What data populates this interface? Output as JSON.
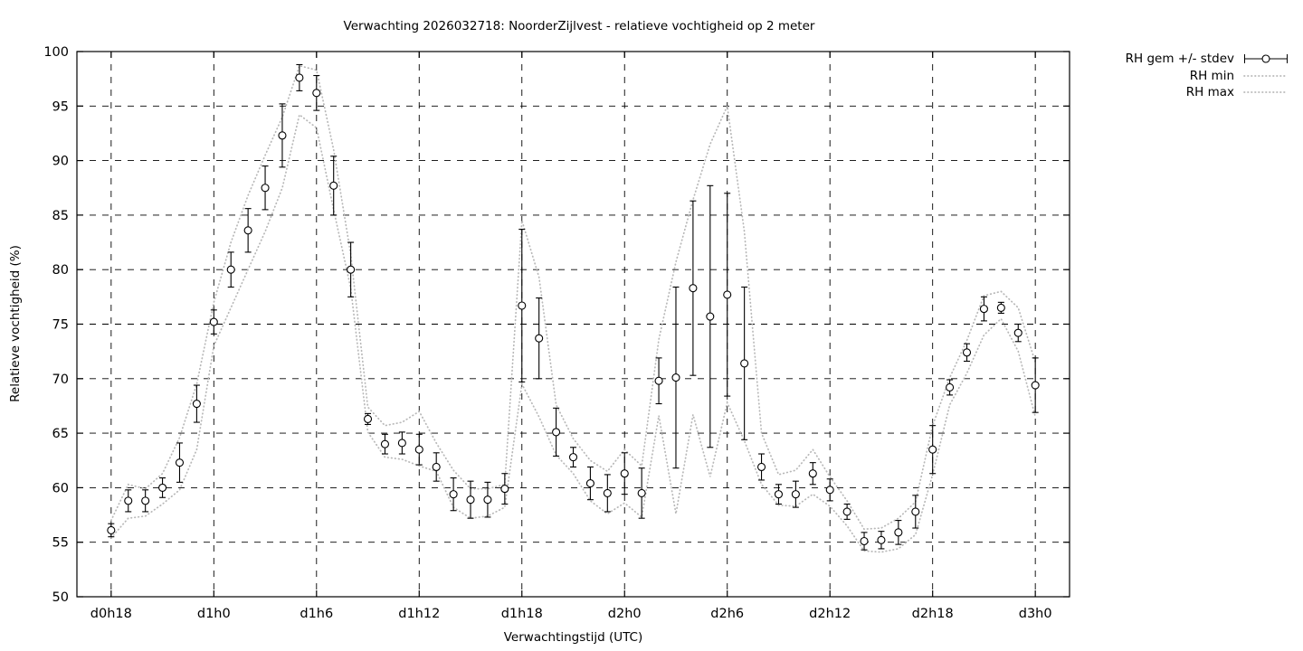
{
  "chart_data": {
    "type": "line",
    "title": "Verwachting 2026032718: NoorderZijlvest - relatieve vochtigheid op 2 meter",
    "xlabel": "Verwachtingstijd (UTC)",
    "ylabel": "Relatieve vochtigheid (%)",
    "grid": true,
    "legend_position": "outside-top-right",
    "ylim": [
      50,
      100
    ],
    "yticks": [
      50,
      55,
      60,
      65,
      70,
      75,
      80,
      85,
      90,
      95,
      100
    ],
    "xlim_hours": [
      16,
      74
    ],
    "xticks": [
      {
        "hour": 18,
        "label": "d0h18"
      },
      {
        "hour": 24,
        "label": "d1h0"
      },
      {
        "hour": 30,
        "label": "d1h6"
      },
      {
        "hour": 36,
        "label": "d1h12"
      },
      {
        "hour": 42,
        "label": "d1h18"
      },
      {
        "hour": 48,
        "label": "d2h0"
      },
      {
        "hour": 54,
        "label": "d2h6"
      },
      {
        "hour": 60,
        "label": "d2h12"
      },
      {
        "hour": 66,
        "label": "d2h18"
      },
      {
        "hour": 72,
        "label": "d3h0"
      }
    ],
    "x_hours": [
      18,
      19,
      20,
      21,
      22,
      23,
      24,
      25,
      26,
      27,
      28,
      29,
      30,
      31,
      32,
      33,
      34,
      35,
      36,
      37,
      38,
      39,
      40,
      41,
      42,
      43,
      44,
      45,
      46,
      47,
      48,
      49,
      50,
      51,
      52,
      53,
      54,
      55,
      56,
      57,
      58,
      59,
      60,
      61,
      62,
      63,
      64,
      65,
      66,
      67,
      68,
      69,
      70,
      71,
      72
    ],
    "series": [
      {
        "name": "RH gem +/- stdev",
        "style": "points-errorbars",
        "color": "#000000",
        "values": [
          56.1,
          58.8,
          58.8,
          60.0,
          62.3,
          67.7,
          75.2,
          80.0,
          83.6,
          87.5,
          92.3,
          97.6,
          96.2,
          87.7,
          80.0,
          66.3,
          64.0,
          64.1,
          63.5,
          61.9,
          59.4,
          58.9,
          58.9,
          59.9,
          76.7,
          73.7,
          65.1,
          62.8,
          60.4,
          59.5,
          61.3,
          59.5,
          69.8,
          70.1,
          78.3,
          75.7,
          77.7,
          71.4,
          61.9,
          59.4,
          59.4,
          61.3,
          59.8,
          57.8,
          55.1,
          55.2,
          55.9,
          57.8,
          63.5,
          69.2,
          72.4,
          76.4,
          76.5,
          74.2,
          69.4
        ],
        "stdev": [
          0.6,
          1.0,
          1.0,
          0.9,
          1.8,
          1.7,
          1.1,
          1.6,
          2.0,
          2.0,
          2.9,
          1.2,
          1.6,
          2.7,
          2.5,
          0.5,
          0.9,
          1.0,
          1.4,
          1.3,
          1.5,
          1.7,
          1.6,
          1.4,
          7.0,
          3.7,
          2.2,
          0.9,
          1.5,
          1.7,
          1.9,
          2.3,
          2.1,
          8.3,
          8.0,
          12.0,
          9.3,
          7.0,
          1.2,
          0.9,
          1.2,
          1.0,
          1.0,
          0.7,
          0.8,
          0.8,
          1.1,
          1.5,
          2.2,
          0.7,
          0.8,
          1.1,
          0.5,
          0.8,
          2.5
        ]
      },
      {
        "name": "RH min",
        "style": "dotted",
        "color": "#b8b8b8",
        "values": [
          55.4,
          57.2,
          57.4,
          58.5,
          59.8,
          63.5,
          73.0,
          76.5,
          80.0,
          83.5,
          87.5,
          94.2,
          93.0,
          85.5,
          78.3,
          65.1,
          62.8,
          62.6,
          62.0,
          61.5,
          58.2,
          57.2,
          57.4,
          58.2,
          69.5,
          66.5,
          63.0,
          61.3,
          58.8,
          57.6,
          58.6,
          57.3,
          66.6,
          57.6,
          66.7,
          61.0,
          67.8,
          64.3,
          60.3,
          58.4,
          58.3,
          59.4,
          58.3,
          56.5,
          54.2,
          54.1,
          54.4,
          55.7,
          61.2,
          67.6,
          70.5,
          74.0,
          75.5,
          72.5,
          66.5
        ]
      },
      {
        "name": "RH max",
        "style": "dotted",
        "color": "#b8b8b8",
        "values": [
          57.0,
          60.3,
          59.9,
          61.3,
          64.6,
          69.5,
          77.0,
          82.5,
          86.8,
          90.5,
          94.0,
          98.7,
          98.3,
          91.0,
          81.4,
          67.4,
          65.7,
          66.0,
          67.0,
          64.1,
          61.6,
          59.9,
          59.9,
          60.3,
          84.5,
          79.3,
          67.6,
          64.5,
          62.5,
          61.5,
          63.5,
          62.0,
          73.6,
          80.7,
          86.4,
          91.5,
          95.0,
          83.5,
          65.0,
          61.2,
          61.6,
          63.5,
          61.0,
          58.8,
          56.2,
          56.3,
          57.2,
          58.7,
          65.7,
          70.1,
          73.5,
          77.6,
          78.0,
          76.5,
          71.5
        ]
      }
    ],
    "colors": {
      "foreground": "#000000",
      "envelope": "#b8b8b8",
      "background": "#ffffff"
    }
  }
}
